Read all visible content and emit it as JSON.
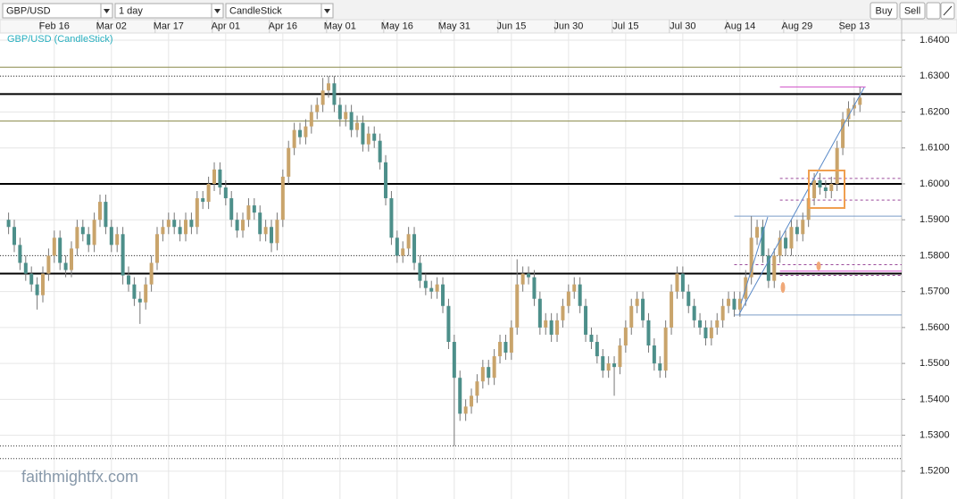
{
  "toolbar": {
    "symbol": "GBP/USD",
    "interval": "1 day",
    "style": "CandleStick",
    "buy": "Buy",
    "sell": "Sell"
  },
  "watermark": "faithmightfx.com",
  "chart_data": {
    "type": "candlestick",
    "title": "GBP/USD (CandleStick)",
    "up_color": "#c9a46b",
    "down_color": "#4d8f8a",
    "xlim": [
      -1.5,
      156.3
    ],
    "xticks": [
      {
        "value": 8,
        "label": "Feb 16"
      },
      {
        "value": 18,
        "label": "Mar 02"
      },
      {
        "value": 28,
        "label": "Mar 17"
      },
      {
        "value": 38,
        "label": "Apr 01"
      },
      {
        "value": 48,
        "label": "Apr 16"
      },
      {
        "value": 58,
        "label": "May 01"
      },
      {
        "value": 68,
        "label": "May 16"
      },
      {
        "value": 78,
        "label": "May 31"
      },
      {
        "value": 88,
        "label": "Jun 15"
      },
      {
        "value": 98,
        "label": "Jun 30"
      },
      {
        "value": 108,
        "label": "Jul 15"
      },
      {
        "value": 118,
        "label": "Jul 30"
      },
      {
        "value": 128,
        "label": "Aug 14"
      },
      {
        "value": 138,
        "label": "Aug 29"
      },
      {
        "value": 148,
        "label": "Sep 13"
      }
    ],
    "ylim": [
      1.51225,
      1.642
    ],
    "yticks": [
      {
        "value": 1.64,
        "label": "1.6400"
      },
      {
        "value": 1.63,
        "label": "1.6300"
      },
      {
        "value": 1.62,
        "label": "1.6200"
      },
      {
        "value": 1.61,
        "label": "1.6100"
      },
      {
        "value": 1.6,
        "label": "1.6000"
      },
      {
        "value": 1.59,
        "label": "1.5900"
      },
      {
        "value": 1.58,
        "label": "1.5800"
      },
      {
        "value": 1.57,
        "label": "1.5700"
      },
      {
        "value": 1.56,
        "label": "1.5600"
      },
      {
        "value": 1.55,
        "label": "1.5500"
      },
      {
        "value": 1.54,
        "label": "1.5400"
      },
      {
        "value": 1.53,
        "label": "1.5300"
      },
      {
        "value": 1.52,
        "label": "1.5200"
      }
    ],
    "grid": true,
    "hlines": [
      {
        "value": 1.6325,
        "color": "#8a8a4a",
        "style": "thin"
      },
      {
        "value": 1.63,
        "color": "#333333",
        "style": "dotted"
      },
      {
        "value": 1.625,
        "color": "#000000",
        "style": "thick"
      },
      {
        "value": 1.6175,
        "color": "#8a8a4a",
        "style": "thin"
      },
      {
        "value": 1.6,
        "color": "#000000",
        "style": "thick"
      },
      {
        "value": 1.58,
        "color": "#333333",
        "style": "dotted"
      },
      {
        "value": 1.575,
        "color": "#000000",
        "style": "thick"
      },
      {
        "value": 1.527,
        "color": "#333333",
        "style": "dotted"
      },
      {
        "value": 1.5235,
        "color": "#333333",
        "style": "dotted"
      },
      {
        "value": 1.591,
        "color": "#7a9cc8",
        "style": "thin",
        "start": 127
      },
      {
        "value": 1.5635,
        "color": "#7a9cc8",
        "style": "thin",
        "start": 127
      },
      {
        "value": 1.627,
        "color": "#d050c8",
        "style": "thin",
        "start": 135,
        "end": 150
      },
      {
        "value": 1.5757,
        "color": "#d050c8",
        "style": "thin",
        "start": 135
      },
      {
        "value": 1.6015,
        "color": "#9a4a9a",
        "style": "dashed",
        "start": 135
      },
      {
        "value": 1.5955,
        "color": "#9a4a9a",
        "style": "dashed",
        "start": 135
      },
      {
        "value": 1.5775,
        "color": "#9a4a9a",
        "style": "dashed",
        "start": 127
      },
      {
        "value": 1.5745,
        "color": "#9a4a9a",
        "style": "dashed",
        "start": 135
      }
    ],
    "ohlc": [
      [
        1.59,
        1.592,
        1.586,
        1.588
      ],
      [
        1.588,
        1.59,
        1.581,
        1.583
      ],
      [
        1.583,
        1.585,
        1.576,
        1.578
      ],
      [
        1.578,
        1.58,
        1.573,
        1.575
      ],
      [
        1.575,
        1.577,
        1.57,
        1.572
      ],
      [
        1.572,
        1.574,
        1.565,
        1.569
      ],
      [
        1.569,
        1.577,
        1.567,
        1.575
      ],
      [
        1.575,
        1.582,
        1.573,
        1.58
      ],
      [
        1.58,
        1.587,
        1.578,
        1.585
      ],
      [
        1.585,
        1.587,
        1.576,
        1.578
      ],
      [
        1.578,
        1.58,
        1.574,
        1.576
      ],
      [
        1.576,
        1.584,
        1.574,
        1.582
      ],
      [
        1.582,
        1.59,
        1.58,
        1.588
      ],
      [
        1.588,
        1.59,
        1.584,
        1.586
      ],
      [
        1.586,
        1.588,
        1.581,
        1.583
      ],
      [
        1.583,
        1.592,
        1.581,
        1.59
      ],
      [
        1.59,
        1.597,
        1.588,
        1.595
      ],
      [
        1.595,
        1.597,
        1.586,
        1.588
      ],
      [
        1.588,
        1.59,
        1.581,
        1.583
      ],
      [
        1.583,
        1.588,
        1.581,
        1.586
      ],
      [
        1.586,
        1.588,
        1.572,
        1.5745
      ],
      [
        1.5745,
        1.577,
        1.57,
        1.572
      ],
      [
        1.572,
        1.574,
        1.566,
        1.568
      ],
      [
        1.568,
        1.57,
        1.561,
        1.567
      ],
      [
        1.567,
        1.574,
        1.565,
        1.572
      ],
      [
        1.572,
        1.58,
        1.57,
        1.578
      ],
      [
        1.578,
        1.588,
        1.576,
        1.586
      ],
      [
        1.586,
        1.59,
        1.584,
        1.588
      ],
      [
        1.588,
        1.592,
        1.586,
        1.59
      ],
      [
        1.59,
        1.592,
        1.586,
        1.588
      ],
      [
        1.588,
        1.59,
        1.584,
        1.586
      ],
      [
        1.586,
        1.592,
        1.584,
        1.59
      ],
      [
        1.59,
        1.592,
        1.586,
        1.588
      ],
      [
        1.588,
        1.598,
        1.586,
        1.596
      ],
      [
        1.596,
        1.598,
        1.593,
        1.595
      ],
      [
        1.595,
        1.602,
        1.593,
        1.6
      ],
      [
        1.6,
        1.606,
        1.598,
        1.604
      ],
      [
        1.604,
        1.606,
        1.597,
        1.599
      ],
      [
        1.599,
        1.601,
        1.594,
        1.596
      ],
      [
        1.596,
        1.598,
        1.588,
        1.59
      ],
      [
        1.59,
        1.592,
        1.585,
        1.587
      ],
      [
        1.587,
        1.592,
        1.585,
        1.59
      ],
      [
        1.59,
        1.596,
        1.588,
        1.594
      ],
      [
        1.594,
        1.596,
        1.59,
        1.592
      ],
      [
        1.592,
        1.594,
        1.584,
        1.586
      ],
      [
        1.586,
        1.59,
        1.584,
        1.588
      ],
      [
        1.588,
        1.59,
        1.581,
        1.5835
      ],
      [
        1.5835,
        1.592,
        1.5815,
        1.59
      ],
      [
        1.59,
        1.604,
        1.588,
        1.602
      ],
      [
        1.602,
        1.612,
        1.6,
        1.61
      ],
      [
        1.61,
        1.617,
        1.608,
        1.615
      ],
      [
        1.615,
        1.617,
        1.611,
        1.613
      ],
      [
        1.613,
        1.618,
        1.611,
        1.616
      ],
      [
        1.616,
        1.622,
        1.614,
        1.62
      ],
      [
        1.62,
        1.624,
        1.618,
        1.622
      ],
      [
        1.622,
        1.6295,
        1.62,
        1.626
      ],
      [
        1.626,
        1.63,
        1.624,
        1.628
      ],
      [
        1.628,
        1.63,
        1.62,
        1.622
      ],
      [
        1.622,
        1.624,
        1.616,
        1.618
      ],
      [
        1.618,
        1.622,
        1.616,
        1.62
      ],
      [
        1.62,
        1.622,
        1.613,
        1.615
      ],
      [
        1.615,
        1.619,
        1.613,
        1.617
      ],
      [
        1.617,
        1.619,
        1.609,
        1.611
      ],
      [
        1.611,
        1.616,
        1.609,
        1.614
      ],
      [
        1.614,
        1.616,
        1.61,
        1.612
      ],
      [
        1.612,
        1.614,
        1.604,
        1.606
      ],
      [
        1.606,
        1.608,
        1.594,
        1.596
      ],
      [
        1.596,
        1.598,
        1.583,
        1.585
      ],
      [
        1.585,
        1.587,
        1.578,
        1.58
      ],
      [
        1.58,
        1.584,
        1.578,
        1.582
      ],
      [
        1.582,
        1.588,
        1.58,
        1.586
      ],
      [
        1.586,
        1.588,
        1.576,
        1.578
      ],
      [
        1.578,
        1.58,
        1.571,
        1.573
      ],
      [
        1.573,
        1.575,
        1.569,
        1.571
      ],
      [
        1.571,
        1.573,
        1.568,
        1.57
      ],
      [
        1.57,
        1.574,
        1.568,
        1.572
      ],
      [
        1.572,
        1.574,
        1.564,
        1.566
      ],
      [
        1.566,
        1.568,
        1.554,
        1.556
      ],
      [
        1.556,
        1.558,
        1.527,
        1.546
      ],
      [
        1.546,
        1.548,
        1.534,
        1.536
      ],
      [
        1.536,
        1.54,
        1.534,
        1.538
      ],
      [
        1.538,
        1.543,
        1.536,
        1.541
      ],
      [
        1.541,
        1.547,
        1.539,
        1.545
      ],
      [
        1.545,
        1.551,
        1.543,
        1.549
      ],
      [
        1.549,
        1.551,
        1.544,
        1.546
      ],
      [
        1.546,
        1.554,
        1.544,
        1.552
      ],
      [
        1.552,
        1.558,
        1.55,
        1.556
      ],
      [
        1.556,
        1.558,
        1.551,
        1.553
      ],
      [
        1.553,
        1.562,
        1.551,
        1.56
      ],
      [
        1.56,
        1.579,
        1.558,
        1.572
      ],
      [
        1.572,
        1.577,
        1.57,
        1.575
      ],
      [
        1.575,
        1.577,
        1.572,
        1.574
      ],
      [
        1.574,
        1.576,
        1.566,
        1.568
      ],
      [
        1.568,
        1.57,
        1.558,
        1.56
      ],
      [
        1.56,
        1.564,
        1.558,
        1.562
      ],
      [
        1.562,
        1.564,
        1.556,
        1.558
      ],
      [
        1.558,
        1.564,
        1.556,
        1.562
      ],
      [
        1.562,
        1.568,
        1.56,
        1.566
      ],
      [
        1.566,
        1.572,
        1.564,
        1.57
      ],
      [
        1.57,
        1.574,
        1.568,
        1.572
      ],
      [
        1.572,
        1.574,
        1.564,
        1.566
      ],
      [
        1.566,
        1.568,
        1.556,
        1.558
      ],
      [
        1.558,
        1.56,
        1.554,
        1.556
      ],
      [
        1.556,
        1.558,
        1.55,
        1.552
      ],
      [
        1.552,
        1.554,
        1.546,
        1.548
      ],
      [
        1.548,
        1.552,
        1.546,
        1.55
      ],
      [
        1.55,
        1.552,
        1.541,
        1.549
      ],
      [
        1.549,
        1.557,
        1.547,
        1.555
      ],
      [
        1.555,
        1.562,
        1.553,
        1.56
      ],
      [
        1.56,
        1.568,
        1.558,
        1.566
      ],
      [
        1.566,
        1.57,
        1.564,
        1.568
      ],
      [
        1.568,
        1.57,
        1.56,
        1.562
      ],
      [
        1.562,
        1.564,
        1.553,
        1.555
      ],
      [
        1.555,
        1.557,
        1.548,
        1.55
      ],
      [
        1.55,
        1.552,
        1.546,
        1.548
      ],
      [
        1.548,
        1.562,
        1.546,
        1.56
      ],
      [
        1.56,
        1.572,
        1.558,
        1.57
      ],
      [
        1.57,
        1.577,
        1.568,
        1.575
      ],
      [
        1.575,
        1.577,
        1.568,
        1.57
      ],
      [
        1.57,
        1.572,
        1.564,
        1.566
      ],
      [
        1.566,
        1.568,
        1.56,
        1.562
      ],
      [
        1.562,
        1.564,
        1.558,
        1.56
      ],
      [
        1.56,
        1.562,
        1.555,
        1.557
      ],
      [
        1.557,
        1.562,
        1.555,
        1.56
      ],
      [
        1.56,
        1.564,
        1.558,
        1.562
      ],
      [
        1.562,
        1.568,
        1.56,
        1.566
      ],
      [
        1.566,
        1.57,
        1.564,
        1.568
      ],
      [
        1.568,
        1.57,
        1.563,
        1.565
      ],
      [
        1.565,
        1.57,
        1.563,
        1.568
      ],
      [
        1.568,
        1.576,
        1.566,
        1.574
      ],
      [
        1.574,
        1.591,
        1.572,
        1.585
      ],
      [
        1.585,
        1.59,
        1.583,
        1.588
      ],
      [
        1.588,
        1.59,
        1.578,
        1.58
      ],
      [
        1.58,
        1.582,
        1.571,
        1.573
      ],
      [
        1.573,
        1.582,
        1.571,
        1.58
      ],
      [
        1.58,
        1.587,
        1.578,
        1.585
      ],
      [
        1.585,
        1.587,
        1.58,
        1.582
      ],
      [
        1.582,
        1.59,
        1.58,
        1.588
      ],
      [
        1.588,
        1.59,
        1.584,
        1.586
      ],
      [
        1.586,
        1.592,
        1.584,
        1.59
      ],
      [
        1.59,
        1.598,
        1.588,
        1.596
      ],
      [
        1.596,
        1.603,
        1.594,
        1.601
      ],
      [
        1.601,
        1.603,
        1.597,
        1.599
      ],
      [
        1.599,
        1.601,
        1.596,
        1.598
      ],
      [
        1.598,
        1.602,
        1.596,
        1.6
      ],
      [
        1.6,
        1.612,
        1.598,
        1.61
      ],
      [
        1.61,
        1.62,
        1.608,
        1.618
      ],
      [
        1.618,
        1.623,
        1.616,
        1.621
      ],
      [
        1.621,
        1.624,
        1.619,
        1.622
      ],
      [
        1.622,
        1.627,
        1.62,
        1.624
      ]
    ]
  }
}
